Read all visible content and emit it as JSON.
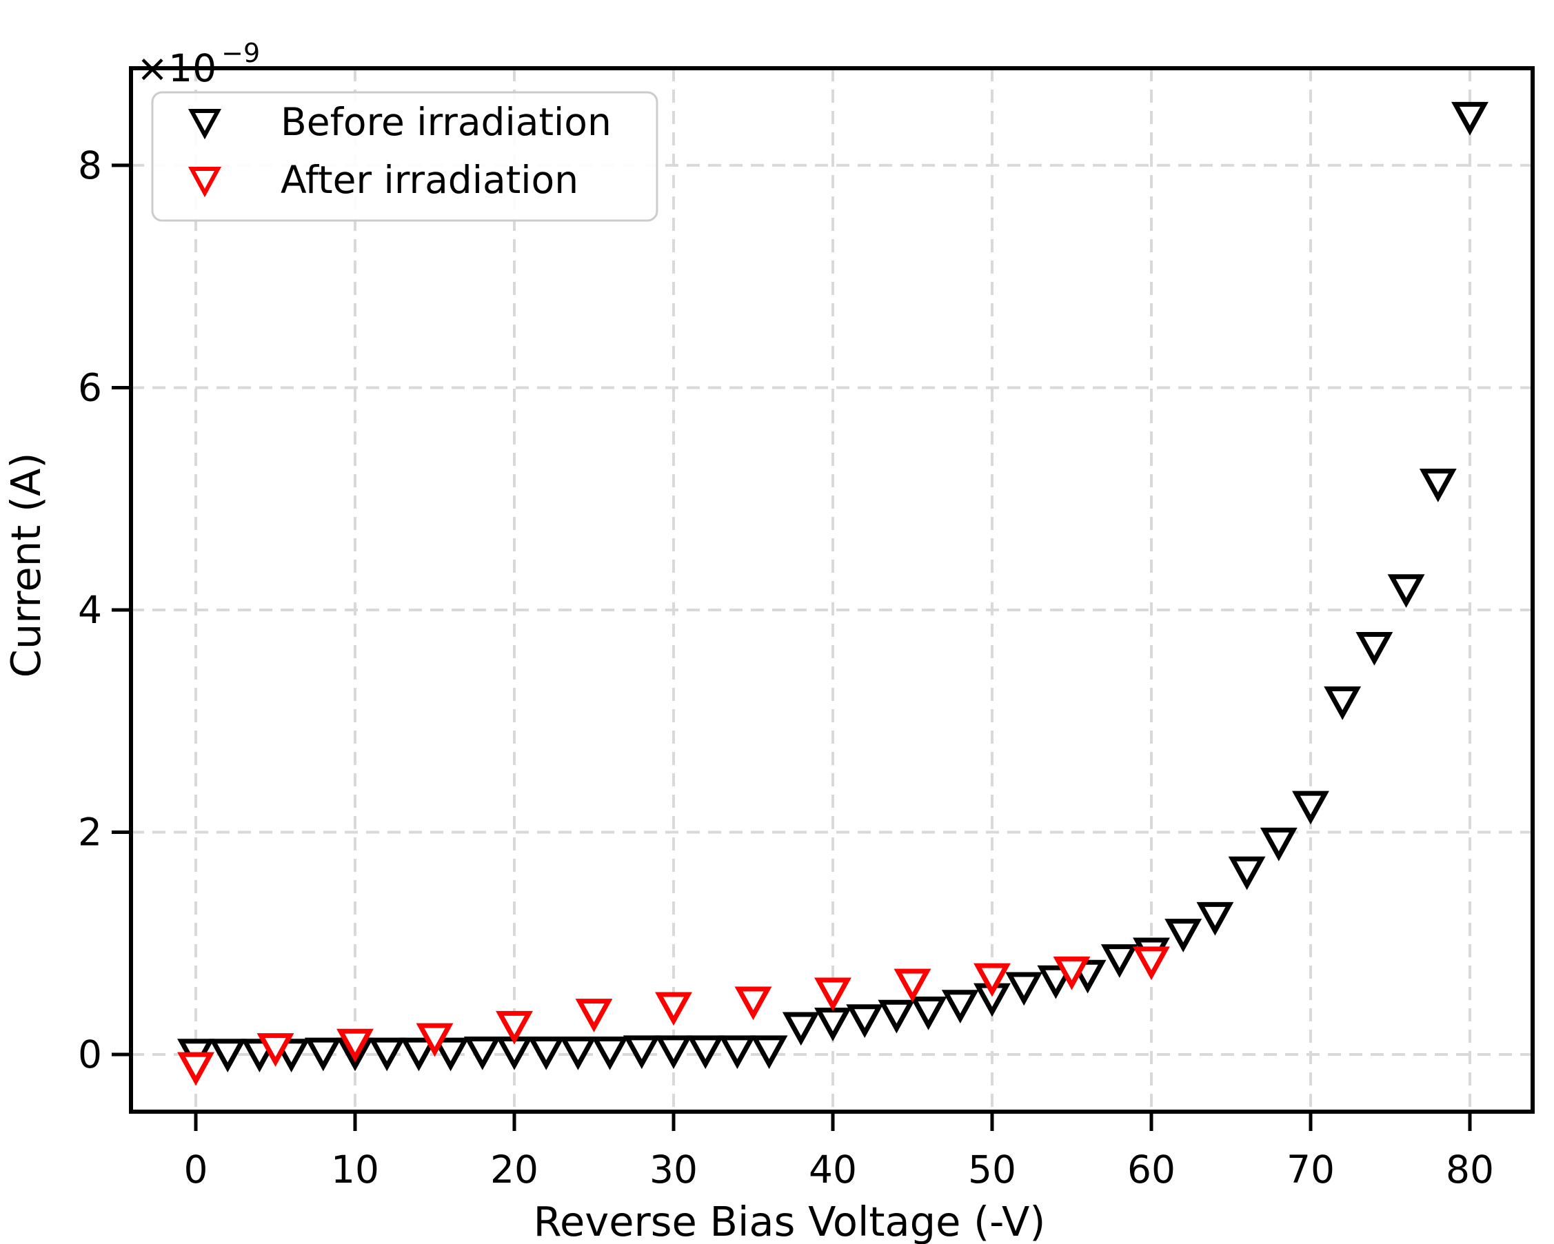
{
  "figure": {
    "background": "#ffffff",
    "offset_text": {
      "base": "×10",
      "exponent": "−9"
    }
  },
  "chart_data": {
    "type": "scatter",
    "title": "",
    "xlabel": "Reverse Bias Voltage (-V)",
    "ylabel": "Current (A)",
    "y_offset_label": "×10⁻⁹",
    "y_unit": "A (values ×10⁻⁹)",
    "xlim": [
      -4.07,
      83.94
    ],
    "ylim": [
      -0.515,
      8.874
    ],
    "x_ticks": [
      0,
      10,
      20,
      30,
      40,
      50,
      60,
      70,
      80
    ],
    "y_ticks": [
      0,
      2,
      4,
      6,
      8
    ],
    "grid": true,
    "grid_style": "dashed",
    "grid_color": "#d9d9d9",
    "legend_position": "upper-left",
    "series": [
      {
        "name": "Before irradiation",
        "color": "#000000",
        "marker": "triangle-down-hollow",
        "x": [
          0,
          2,
          4,
          6,
          8,
          10,
          12,
          14,
          16,
          18,
          20,
          22,
          24,
          26,
          28,
          30,
          32,
          34,
          36,
          38,
          40,
          42,
          44,
          46,
          48,
          50,
          52,
          54,
          56,
          58,
          60,
          62,
          64,
          66,
          68,
          70,
          72,
          74,
          76,
          78,
          80
        ],
        "y": [
          0.02,
          0.02,
          0.02,
          0.02,
          0.03,
          0.03,
          0.03,
          0.03,
          0.03,
          0.04,
          0.04,
          0.04,
          0.04,
          0.04,
          0.05,
          0.05,
          0.05,
          0.05,
          0.05,
          0.26,
          0.3,
          0.33,
          0.37,
          0.4,
          0.46,
          0.52,
          0.62,
          0.68,
          0.73,
          0.87,
          0.93,
          1.1,
          1.25,
          1.66,
          1.92,
          2.25,
          3.19,
          3.68,
          4.2,
          5.15,
          8.45
        ]
      },
      {
        "name": "After irradiation",
        "color": "#ff0000",
        "marker": "triangle-down-hollow",
        "x": [
          0,
          5,
          10,
          15,
          20,
          25,
          30,
          35,
          40,
          45,
          50,
          55,
          60
        ],
        "y": [
          -0.1,
          0.07,
          0.11,
          0.16,
          0.27,
          0.38,
          0.44,
          0.49,
          0.57,
          0.65,
          0.7,
          0.76,
          0.85
        ]
      }
    ]
  },
  "legend": {
    "items": [
      {
        "label": "Before irradiation",
        "color": "#000000"
      },
      {
        "label": "After irradiation",
        "color": "#ff0000"
      }
    ]
  }
}
